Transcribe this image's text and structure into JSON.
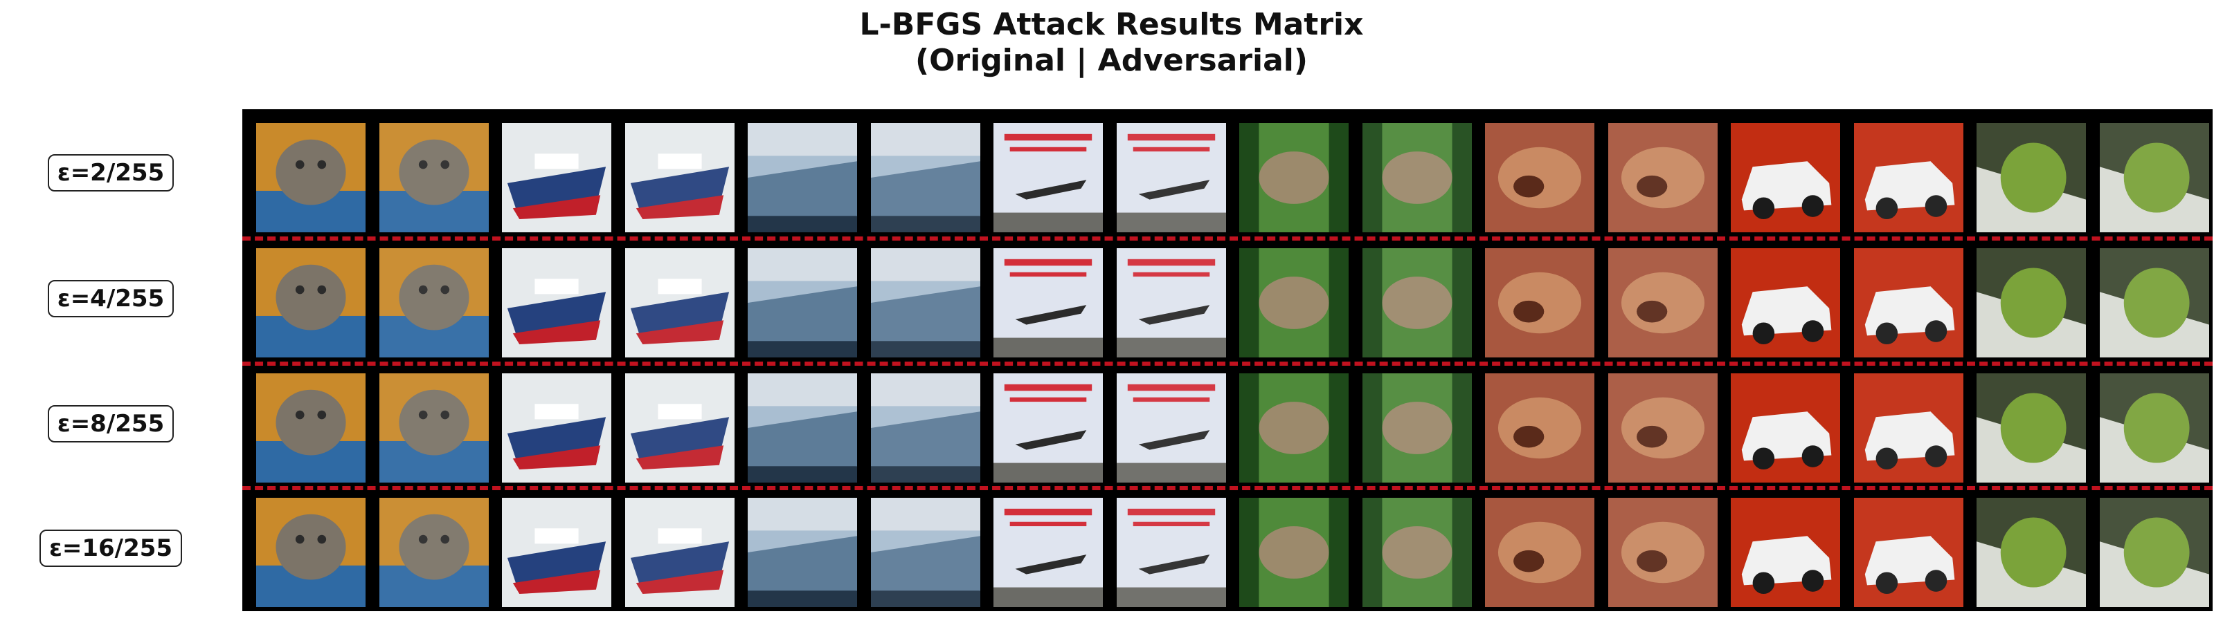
{
  "title": {
    "line1": "L-BFGS Attack Results Matrix",
    "line2": "(Original | Adversarial)"
  },
  "rows": [
    {
      "label": "ε=2/255"
    },
    {
      "label": "ε=4/255"
    },
    {
      "label": "ε=8/255"
    },
    {
      "label": "ε=16/255"
    }
  ],
  "images": [
    {
      "subject": "cat",
      "colors": {
        "bg": "#c98a2b",
        "main": "#7c7468",
        "accent": "#2f6aa4"
      }
    },
    {
      "subject": "ship",
      "colors": {
        "bg": "#e6eaec",
        "main": "#25417e",
        "accent": "#c1202a"
      }
    },
    {
      "subject": "ship-2",
      "colors": {
        "bg": "#a9bed1",
        "main": "#5d7c98",
        "accent": "#233649"
      }
    },
    {
      "subject": "airplane",
      "colors": {
        "bg": "#dfe4ef",
        "main": "#2b2b2b",
        "accent": "#d32f3a"
      }
    },
    {
      "subject": "frog",
      "colors": {
        "bg": "#4f8a3a",
        "main": "#9c8a6c",
        "accent": "#1e4a1a"
      }
    },
    {
      "subject": "frog-2",
      "colors": {
        "bg": "#a8573f",
        "main": "#c98a63",
        "accent": "#5a2a1a"
      }
    },
    {
      "subject": "car",
      "colors": {
        "bg": "#c22d12",
        "main": "#f1f1f1",
        "accent": "#1b1b1b"
      }
    },
    {
      "subject": "frog-3",
      "colors": {
        "bg": "#3f4a33",
        "main": "#7ba33a",
        "accent": "#d9dcd4"
      }
    }
  ],
  "colors": {
    "separator": "#c1121f",
    "frame": "#000000"
  }
}
